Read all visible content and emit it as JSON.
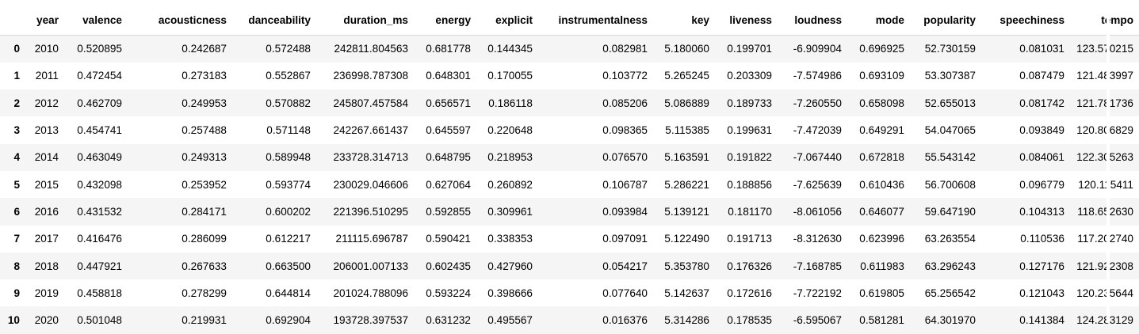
{
  "table": {
    "columns": [
      "year",
      "valence",
      "acousticness",
      "danceability",
      "duration_ms",
      "energy",
      "explicit",
      "instrumentalness",
      "key",
      "liveness",
      "loudness",
      "mode",
      "popularity",
      "speechiness",
      "tempo"
    ],
    "rows": [
      {
        "index": "0",
        "cells": [
          "2010",
          "0.520895",
          "0.242687",
          "0.572488",
          "242811.804563",
          "0.681778",
          "0.144345",
          "0.082981",
          "5.180060",
          "0.199701",
          "-6.909904",
          "0.696925",
          "52.730159",
          "0.081031",
          "123.570215"
        ]
      },
      {
        "index": "1",
        "cells": [
          "2011",
          "0.472454",
          "0.273183",
          "0.552867",
          "236998.787308",
          "0.648301",
          "0.170055",
          "0.103772",
          "5.265245",
          "0.203309",
          "-7.574986",
          "0.693109",
          "53.307387",
          "0.087479",
          "121.483997"
        ]
      },
      {
        "index": "2",
        "cells": [
          "2012",
          "0.462709",
          "0.249953",
          "0.570882",
          "245807.457584",
          "0.656571",
          "0.186118",
          "0.085206",
          "5.086889",
          "0.189733",
          "-7.260550",
          "0.658098",
          "52.655013",
          "0.081742",
          "121.781736"
        ]
      },
      {
        "index": "3",
        "cells": [
          "2013",
          "0.454741",
          "0.257488",
          "0.571148",
          "242267.661437",
          "0.645597",
          "0.220648",
          "0.098365",
          "5.115385",
          "0.199631",
          "-7.472039",
          "0.649291",
          "54.047065",
          "0.093849",
          "120.806829"
        ]
      },
      {
        "index": "4",
        "cells": [
          "2014",
          "0.463049",
          "0.249313",
          "0.589948",
          "233728.314713",
          "0.648795",
          "0.218953",
          "0.076570",
          "5.163591",
          "0.191822",
          "-7.067440",
          "0.672818",
          "55.543142",
          "0.084061",
          "122.305263"
        ]
      },
      {
        "index": "5",
        "cells": [
          "2015",
          "0.432098",
          "0.253952",
          "0.593774",
          "230029.046606",
          "0.627064",
          "0.260892",
          "0.106787",
          "5.286221",
          "0.188856",
          "-7.625639",
          "0.610436",
          "56.700608",
          "0.096779",
          "120.115411"
        ]
      },
      {
        "index": "6",
        "cells": [
          "2016",
          "0.431532",
          "0.284171",
          "0.600202",
          "221396.510295",
          "0.592855",
          "0.309961",
          "0.093984",
          "5.139121",
          "0.181170",
          "-8.061056",
          "0.646077",
          "59.647190",
          "0.104313",
          "118.652630"
        ]
      },
      {
        "index": "7",
        "cells": [
          "2017",
          "0.416476",
          "0.286099",
          "0.612217",
          "211115.696787",
          "0.590421",
          "0.338353",
          "0.097091",
          "5.122490",
          "0.191713",
          "-8.312630",
          "0.623996",
          "63.263554",
          "0.110536",
          "117.202740"
        ]
      },
      {
        "index": "8",
        "cells": [
          "2018",
          "0.447921",
          "0.267633",
          "0.663500",
          "206001.007133",
          "0.602435",
          "0.427960",
          "0.054217",
          "5.353780",
          "0.176326",
          "-7.168785",
          "0.611983",
          "63.296243",
          "0.127176",
          "121.922308"
        ]
      },
      {
        "index": "9",
        "cells": [
          "2019",
          "0.458818",
          "0.278299",
          "0.644814",
          "201024.788096",
          "0.593224",
          "0.398666",
          "0.077640",
          "5.142637",
          "0.172616",
          "-7.722192",
          "0.619805",
          "65.256542",
          "0.121043",
          "120.235644"
        ]
      },
      {
        "index": "10",
        "cells": [
          "2020",
          "0.501048",
          "0.219931",
          "0.692904",
          "193728.397537",
          "0.631232",
          "0.495567",
          "0.016376",
          "5.314286",
          "0.178535",
          "-6.595067",
          "0.581281",
          "64.301970",
          "0.141384",
          "124.283129"
        ]
      }
    ]
  }
}
